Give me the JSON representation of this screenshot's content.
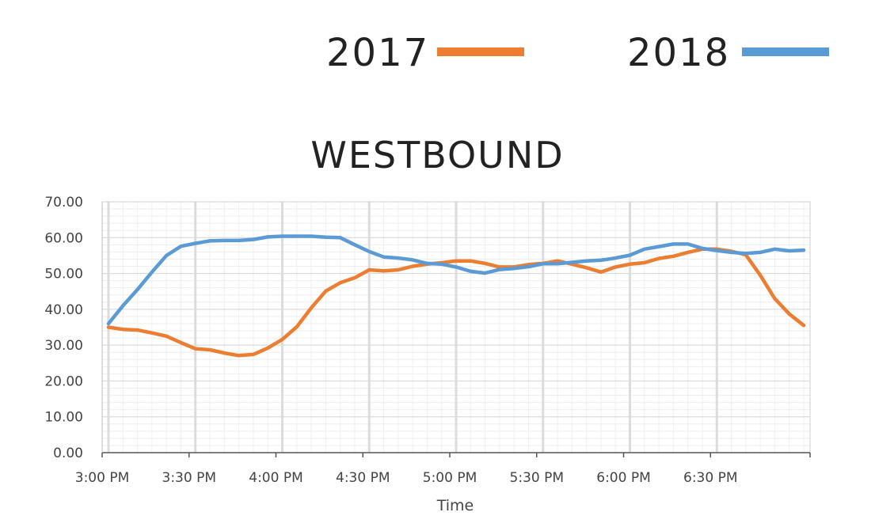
{
  "legend": [
    {
      "name": "2017",
      "color": "#ED7D31"
    },
    {
      "name": "2018",
      "color": "#5B9BD5"
    }
  ],
  "chart_data": {
    "type": "line",
    "title": "WESTBOUND",
    "xlabel": "Time",
    "ylabel": "",
    "ylim": [
      0,
      70
    ],
    "yticks": [
      "0.00",
      "10.00",
      "20.00",
      "30.00",
      "40.00",
      "50.00",
      "60.00",
      "70.00"
    ],
    "xlim": [
      "3:00 PM",
      "7:00 PM"
    ],
    "xticks": [
      "3:00 PM",
      "3:30 PM",
      "4:00 PM",
      "4:30 PM",
      "5:00 PM",
      "5:30 PM",
      "6:00 PM",
      "6:30 PM"
    ],
    "grid": true,
    "legend_position": "top",
    "x": [
      "3:00 PM",
      "3:05 PM",
      "3:10 PM",
      "3:15 PM",
      "3:20 PM",
      "3:25 PM",
      "3:30 PM",
      "3:35 PM",
      "3:40 PM",
      "3:45 PM",
      "3:50 PM",
      "3:55 PM",
      "4:00 PM",
      "4:05 PM",
      "4:10 PM",
      "4:15 PM",
      "4:20 PM",
      "4:25 PM",
      "4:30 PM",
      "4:35 PM",
      "4:40 PM",
      "4:45 PM",
      "4:50 PM",
      "4:55 PM",
      "5:00 PM",
      "5:05 PM",
      "5:10 PM",
      "5:15 PM",
      "5:20 PM",
      "5:25 PM",
      "5:30 PM",
      "5:35 PM",
      "5:40 PM",
      "5:45 PM",
      "5:50 PM",
      "5:55 PM",
      "6:00 PM",
      "6:05 PM",
      "6:10 PM",
      "6:15 PM",
      "6:20 PM",
      "6:25 PM",
      "6:30 PM",
      "6:35 PM",
      "6:40 PM",
      "6:45 PM",
      "6:50 PM",
      "6:55 PM",
      "7:00 PM"
    ],
    "series": [
      {
        "name": "2017",
        "color": "#ED7D31",
        "values": [
          35.0,
          34.4,
          34.2,
          33.4,
          32.5,
          30.7,
          29.0,
          28.7,
          27.8,
          27.1,
          27.4,
          29.2,
          31.6,
          35.1,
          40.4,
          45.1,
          47.4,
          48.8,
          51.0,
          50.7,
          51.0,
          52.0,
          52.6,
          53.0,
          53.5,
          53.5,
          52.8,
          51.8,
          51.8,
          52.5,
          52.8,
          53.5,
          52.6,
          51.6,
          50.4,
          51.8,
          52.6,
          53.0,
          54.2,
          54.8,
          55.9,
          56.8,
          56.8,
          56.2,
          55.2,
          49.5,
          43.0,
          38.7,
          35.5
        ]
      },
      {
        "name": "2018",
        "color": "#5B9BD5",
        "values": [
          36.0,
          41.0,
          45.5,
          50.4,
          55.0,
          57.6,
          58.4,
          59.1,
          59.2,
          59.2,
          59.5,
          60.2,
          60.4,
          60.4,
          60.4,
          60.1,
          60.0,
          58.0,
          56.1,
          54.6,
          54.3,
          53.8,
          52.8,
          52.6,
          51.8,
          50.6,
          50.1,
          51.1,
          51.4,
          51.9,
          52.7,
          52.7,
          53.1,
          53.5,
          53.7,
          54.3,
          55.1,
          56.8,
          57.5,
          58.2,
          58.2,
          57.0,
          56.4,
          55.9,
          55.6,
          55.9,
          56.8,
          56.3,
          56.5
        ]
      }
    ]
  }
}
